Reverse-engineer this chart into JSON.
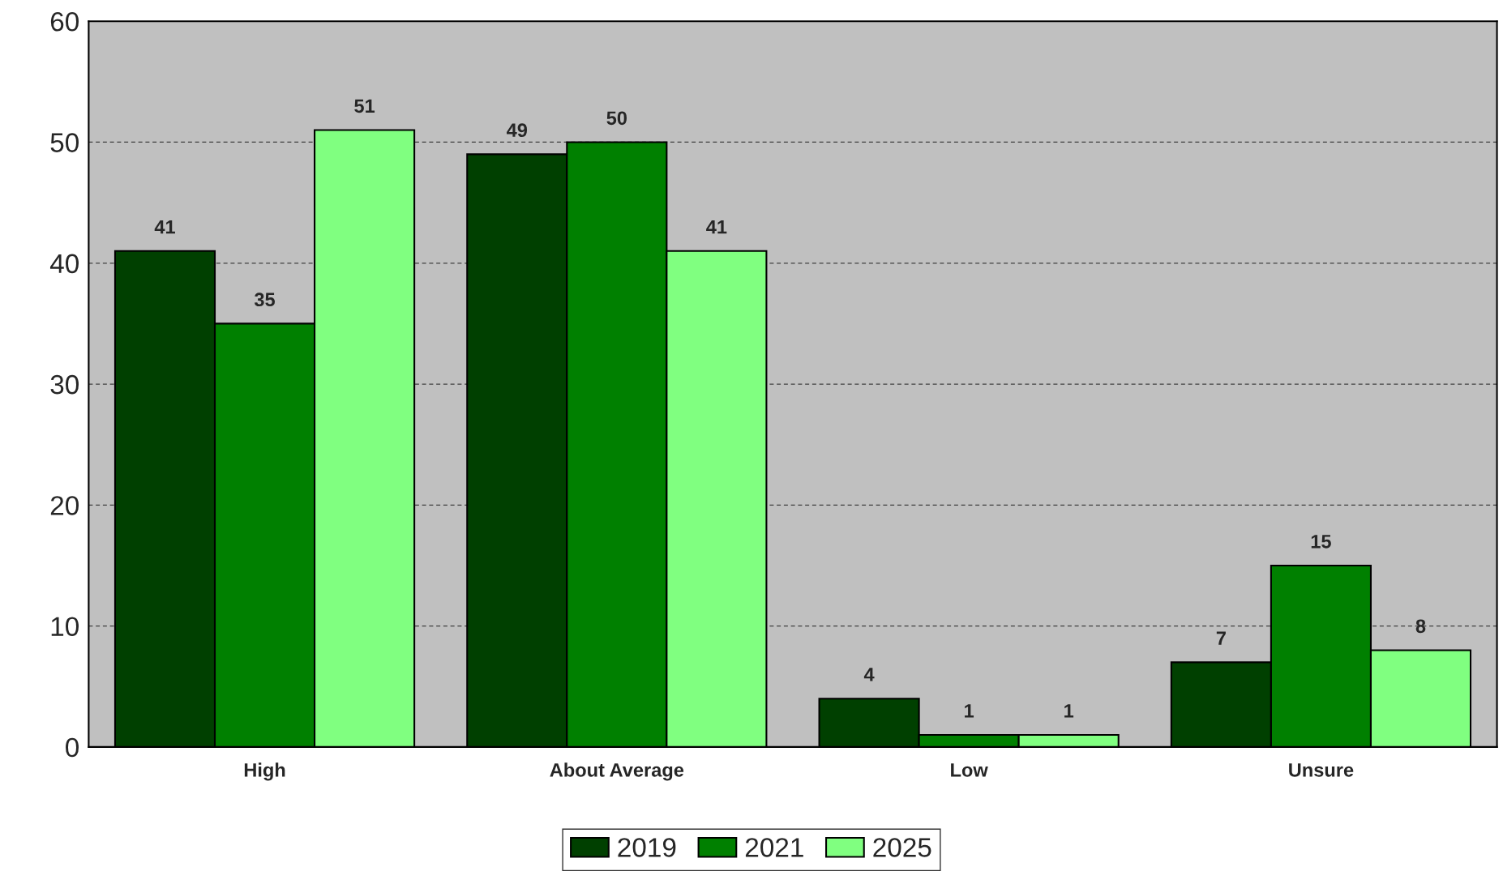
{
  "chart_data": {
    "type": "bar",
    "categories": [
      "High",
      "About Average",
      "Low",
      "Unsure"
    ],
    "series": [
      {
        "name": "2019",
        "color": "#004000",
        "values": [
          41,
          49,
          4,
          7
        ]
      },
      {
        "name": "2021",
        "color": "#008000",
        "values": [
          35,
          50,
          1,
          15
        ]
      },
      {
        "name": "2025",
        "color": "#80ff80",
        "values": [
          51,
          41,
          1,
          8
        ]
      }
    ],
    "ylim": [
      0,
      60
    ],
    "yticks": [
      0,
      10,
      20,
      30,
      40,
      50,
      60
    ],
    "grid": "y",
    "legend": "bottom",
    "data_labels": true
  }
}
